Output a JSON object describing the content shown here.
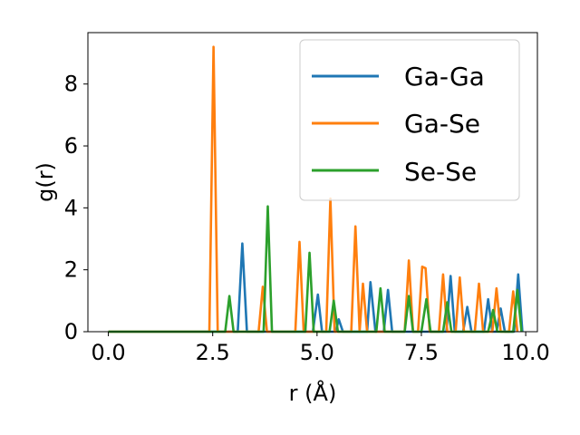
{
  "chart_data": {
    "type": "line",
    "xlabel": "r (Å)",
    "ylabel": "g(r)",
    "xlim": [
      -0.49,
      10.28
    ],
    "ylim": [
      0,
      9.66
    ],
    "xticks": [
      0.0,
      2.5,
      5.0,
      7.5,
      10.0
    ],
    "xtick_labels": [
      "0.0",
      "2.5",
      "5.0",
      "7.5",
      "10.0"
    ],
    "yticks": [
      0,
      2,
      4,
      6,
      8
    ],
    "ytick_labels": [
      "0",
      "2",
      "4",
      "6",
      "8"
    ],
    "grid": false,
    "legend_position": "top-right",
    "series": [
      {
        "name": "Ga-Ga",
        "color": "#1f77b4",
        "points": [
          [
            0,
            0
          ],
          [
            3.1,
            0
          ],
          [
            3.21,
            2.85
          ],
          [
            3.32,
            0
          ],
          [
            4.9,
            0
          ],
          [
            5.02,
            1.2
          ],
          [
            5.12,
            0
          ],
          [
            5.45,
            0
          ],
          [
            5.52,
            0.4
          ],
          [
            5.62,
            0
          ],
          [
            6.2,
            0
          ],
          [
            6.28,
            1.6
          ],
          [
            6.4,
            0
          ],
          [
            6.6,
            0
          ],
          [
            6.7,
            1.35
          ],
          [
            6.8,
            0
          ],
          [
            8.1,
            0
          ],
          [
            8.2,
            1.8
          ],
          [
            8.3,
            0
          ],
          [
            8.5,
            0
          ],
          [
            8.6,
            0.8
          ],
          [
            8.7,
            0
          ],
          [
            9.0,
            0
          ],
          [
            9.1,
            1.05
          ],
          [
            9.2,
            0
          ],
          [
            9.3,
            0
          ],
          [
            9.4,
            0.75
          ],
          [
            9.5,
            0
          ],
          [
            9.72,
            0
          ],
          [
            9.82,
            1.85
          ],
          [
            9.92,
            0
          ]
        ]
      },
      {
        "name": "Ga-Se",
        "color": "#ff7f0e",
        "points": [
          [
            0,
            0
          ],
          [
            2.42,
            0
          ],
          [
            2.52,
            9.2
          ],
          [
            2.62,
            0
          ],
          [
            3.6,
            0
          ],
          [
            3.7,
            1.45
          ],
          [
            3.8,
            0
          ],
          [
            4.48,
            0
          ],
          [
            4.58,
            2.9
          ],
          [
            4.68,
            0
          ],
          [
            5.22,
            0
          ],
          [
            5.32,
            4.3
          ],
          [
            5.42,
            0
          ],
          [
            5.82,
            0
          ],
          [
            5.92,
            3.4
          ],
          [
            6.02,
            0
          ],
          [
            6.02,
            0
          ],
          [
            6.1,
            1.55
          ],
          [
            6.2,
            0
          ],
          [
            7.1,
            0
          ],
          [
            7.2,
            2.3
          ],
          [
            7.3,
            0
          ],
          [
            7.42,
            0
          ],
          [
            7.52,
            2.1
          ],
          [
            7.6,
            2.05
          ],
          [
            7.7,
            0
          ],
          [
            7.92,
            0
          ],
          [
            8.02,
            1.85
          ],
          [
            8.12,
            0
          ],
          [
            8.32,
            0
          ],
          [
            8.42,
            1.75
          ],
          [
            8.52,
            0
          ],
          [
            8.78,
            0
          ],
          [
            8.88,
            1.55
          ],
          [
            8.98,
            0
          ],
          [
            9.2,
            0
          ],
          [
            9.3,
            1.4
          ],
          [
            9.4,
            0
          ],
          [
            9.6,
            0
          ],
          [
            9.7,
            1.3
          ],
          [
            9.8,
            0
          ]
        ]
      },
      {
        "name": "Se-Se",
        "color": "#2ca02c",
        "points": [
          [
            0,
            0
          ],
          [
            2.8,
            0
          ],
          [
            2.9,
            1.15
          ],
          [
            3.0,
            0
          ],
          [
            3.72,
            0
          ],
          [
            3.82,
            4.05
          ],
          [
            3.92,
            0
          ],
          [
            4.72,
            0
          ],
          [
            4.82,
            2.55
          ],
          [
            4.92,
            0
          ],
          [
            5.3,
            0
          ],
          [
            5.4,
            1.0
          ],
          [
            5.5,
            0
          ],
          [
            6.42,
            0
          ],
          [
            6.52,
            1.4
          ],
          [
            6.62,
            0
          ],
          [
            7.1,
            0
          ],
          [
            7.2,
            1.15
          ],
          [
            7.3,
            0
          ],
          [
            7.5,
            0
          ],
          [
            7.62,
            1.05
          ],
          [
            7.72,
            0
          ],
          [
            8.02,
            0
          ],
          [
            8.12,
            0.95
          ],
          [
            8.22,
            0
          ],
          [
            9.1,
            0
          ],
          [
            9.22,
            0.7
          ],
          [
            9.32,
            0
          ],
          [
            9.7,
            0
          ],
          [
            9.8,
            1.35
          ],
          [
            9.9,
            0
          ]
        ]
      }
    ]
  }
}
